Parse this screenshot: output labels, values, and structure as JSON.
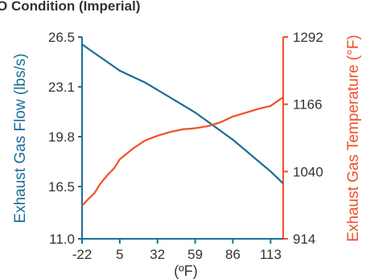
{
  "chart_data": {
    "type": "line",
    "title": "O Condition (Imperial)",
    "xlabel": "(ºF)",
    "ylabel_left": "Exhaust Gas Flow (lbs/s)",
    "ylabel_right": "Exhaust Gas Temperature (°F)",
    "x_ticks": [
      "-22",
      "5",
      "32",
      "59",
      "86",
      "113"
    ],
    "x_tick_values": [
      -22,
      5,
      32,
      59,
      86,
      113
    ],
    "xlim": [
      -22,
      122
    ],
    "y_left_ticks": [
      "26.5",
      "23.1",
      "19.8",
      "16.5",
      "11.0"
    ],
    "y_left_tick_values": [
      26.5,
      23.1,
      19.8,
      16.5,
      11.0
    ],
    "y_right_ticks": [
      "1292",
      "1166",
      "1040",
      "914"
    ],
    "y_right_tick_values": [
      1292,
      1166,
      1040,
      914
    ],
    "series": [
      {
        "name": "Exhaust Gas Flow",
        "axis": "left",
        "color": "#1a6e98",
        "x": [
          -22,
          -13,
          -4,
          5,
          14,
          23,
          32,
          41,
          50,
          59,
          68,
          77,
          86,
          95,
          104,
          113,
          122
        ],
        "y": [
          26.0,
          25.4,
          24.8,
          24.2,
          23.8,
          23.4,
          22.9,
          22.4,
          21.9,
          21.4,
          20.8,
          20.2,
          19.6,
          18.9,
          18.2,
          17.5,
          16.7
        ]
      },
      {
        "name": "Exhaust Gas Temperature",
        "axis": "right",
        "color": "#f0502a",
        "x": [
          -22,
          -18,
          -13,
          -9,
          -4,
          1,
          5,
          14,
          23,
          32,
          41,
          50,
          59,
          68,
          77,
          86,
          95,
          104,
          113,
          118,
          122
        ],
        "y": [
          976,
          987,
          1000,
          1017,
          1033,
          1046,
          1063,
          1082,
          1098,
          1107,
          1114,
          1119,
          1121,
          1125,
          1132,
          1143,
          1150,
          1157,
          1163,
          1172,
          1179
        ]
      }
    ]
  }
}
